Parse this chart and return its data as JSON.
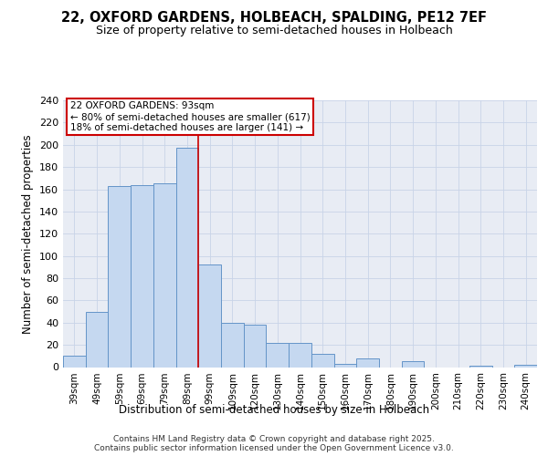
{
  "title": "22, OXFORD GARDENS, HOLBEACH, SPALDING, PE12 7EF",
  "subtitle": "Size of property relative to semi-detached houses in Holbeach",
  "xlabel": "Distribution of semi-detached houses by size in Holbeach",
  "ylabel": "Number of semi-detached properties",
  "categories": [
    "39sqm",
    "49sqm",
    "59sqm",
    "69sqm",
    "79sqm",
    "89sqm",
    "99sqm",
    "109sqm",
    "120sqm",
    "130sqm",
    "140sqm",
    "150sqm",
    "160sqm",
    "170sqm",
    "180sqm",
    "190sqm",
    "200sqm",
    "210sqm",
    "220sqm",
    "230sqm",
    "240sqm"
  ],
  "values": [
    10,
    50,
    163,
    164,
    165,
    197,
    92,
    40,
    38,
    22,
    22,
    12,
    3,
    8,
    0,
    5,
    0,
    0,
    1,
    0,
    2
  ],
  "bar_color": "#c5d8f0",
  "bar_edge_color": "#6494c8",
  "grid_color": "#c8d4e8",
  "background_color": "#e8ecf4",
  "vline_x_idx": 6,
  "vline_color": "#cc0000",
  "annotation_title": "22 OXFORD GARDENS: 93sqm",
  "annotation_line1": "← 80% of semi-detached houses are smaller (617)",
  "annotation_line2": "18% of semi-detached houses are larger (141) →",
  "annotation_box_color": "#ffffff",
  "annotation_box_edge": "#cc0000",
  "ylim": [
    0,
    240
  ],
  "yticks": [
    0,
    20,
    40,
    60,
    80,
    100,
    120,
    140,
    160,
    180,
    200,
    220,
    240
  ],
  "footer1": "Contains HM Land Registry data © Crown copyright and database right 2025.",
  "footer2": "Contains public sector information licensed under the Open Government Licence v3.0."
}
